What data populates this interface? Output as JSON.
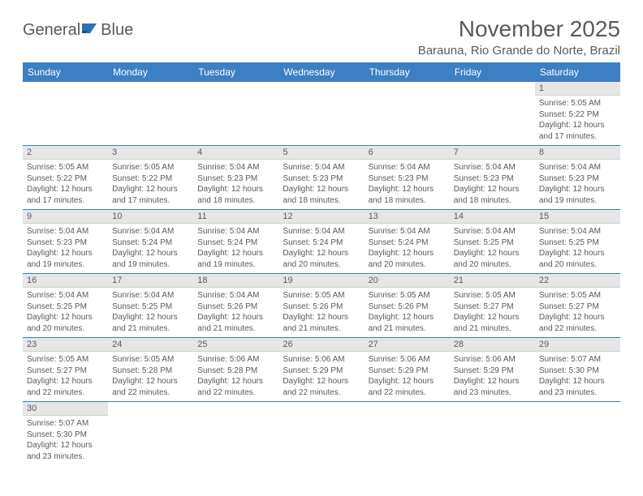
{
  "logo": {
    "textLeft": "General",
    "textRight": "Blue",
    "iconColor": "#2e6fb5",
    "textColor": "#5a5a5a"
  },
  "title": "November 2025",
  "location": "Barauna, Rio Grande do Norte, Brazil",
  "colors": {
    "headerBg": "#3b7fc4",
    "headerText": "#ffffff",
    "dayNumBg": "#e6e6e6",
    "borderColor": "#3b7fc4",
    "bodyText": "#5a5a5a"
  },
  "headers": [
    "Sunday",
    "Monday",
    "Tuesday",
    "Wednesday",
    "Thursday",
    "Friday",
    "Saturday"
  ],
  "weeks": [
    [
      null,
      null,
      null,
      null,
      null,
      null,
      {
        "n": "1",
        "sunrise": "5:05 AM",
        "sunset": "5:22 PM",
        "daylight": "12 hours and 17 minutes."
      }
    ],
    [
      {
        "n": "2",
        "sunrise": "5:05 AM",
        "sunset": "5:22 PM",
        "daylight": "12 hours and 17 minutes."
      },
      {
        "n": "3",
        "sunrise": "5:05 AM",
        "sunset": "5:22 PM",
        "daylight": "12 hours and 17 minutes."
      },
      {
        "n": "4",
        "sunrise": "5:04 AM",
        "sunset": "5:23 PM",
        "daylight": "12 hours and 18 minutes."
      },
      {
        "n": "5",
        "sunrise": "5:04 AM",
        "sunset": "5:23 PM",
        "daylight": "12 hours and 18 minutes."
      },
      {
        "n": "6",
        "sunrise": "5:04 AM",
        "sunset": "5:23 PM",
        "daylight": "12 hours and 18 minutes."
      },
      {
        "n": "7",
        "sunrise": "5:04 AM",
        "sunset": "5:23 PM",
        "daylight": "12 hours and 18 minutes."
      },
      {
        "n": "8",
        "sunrise": "5:04 AM",
        "sunset": "5:23 PM",
        "daylight": "12 hours and 19 minutes."
      }
    ],
    [
      {
        "n": "9",
        "sunrise": "5:04 AM",
        "sunset": "5:23 PM",
        "daylight": "12 hours and 19 minutes."
      },
      {
        "n": "10",
        "sunrise": "5:04 AM",
        "sunset": "5:24 PM",
        "daylight": "12 hours and 19 minutes."
      },
      {
        "n": "11",
        "sunrise": "5:04 AM",
        "sunset": "5:24 PM",
        "daylight": "12 hours and 19 minutes."
      },
      {
        "n": "12",
        "sunrise": "5:04 AM",
        "sunset": "5:24 PM",
        "daylight": "12 hours and 20 minutes."
      },
      {
        "n": "13",
        "sunrise": "5:04 AM",
        "sunset": "5:24 PM",
        "daylight": "12 hours and 20 minutes."
      },
      {
        "n": "14",
        "sunrise": "5:04 AM",
        "sunset": "5:25 PM",
        "daylight": "12 hours and 20 minutes."
      },
      {
        "n": "15",
        "sunrise": "5:04 AM",
        "sunset": "5:25 PM",
        "daylight": "12 hours and 20 minutes."
      }
    ],
    [
      {
        "n": "16",
        "sunrise": "5:04 AM",
        "sunset": "5:25 PM",
        "daylight": "12 hours and 20 minutes."
      },
      {
        "n": "17",
        "sunrise": "5:04 AM",
        "sunset": "5:25 PM",
        "daylight": "12 hours and 21 minutes."
      },
      {
        "n": "18",
        "sunrise": "5:04 AM",
        "sunset": "5:26 PM",
        "daylight": "12 hours and 21 minutes."
      },
      {
        "n": "19",
        "sunrise": "5:05 AM",
        "sunset": "5:26 PM",
        "daylight": "12 hours and 21 minutes."
      },
      {
        "n": "20",
        "sunrise": "5:05 AM",
        "sunset": "5:26 PM",
        "daylight": "12 hours and 21 minutes."
      },
      {
        "n": "21",
        "sunrise": "5:05 AM",
        "sunset": "5:27 PM",
        "daylight": "12 hours and 21 minutes."
      },
      {
        "n": "22",
        "sunrise": "5:05 AM",
        "sunset": "5:27 PM",
        "daylight": "12 hours and 22 minutes."
      }
    ],
    [
      {
        "n": "23",
        "sunrise": "5:05 AM",
        "sunset": "5:27 PM",
        "daylight": "12 hours and 22 minutes."
      },
      {
        "n": "24",
        "sunrise": "5:05 AM",
        "sunset": "5:28 PM",
        "daylight": "12 hours and 22 minutes."
      },
      {
        "n": "25",
        "sunrise": "5:06 AM",
        "sunset": "5:28 PM",
        "daylight": "12 hours and 22 minutes."
      },
      {
        "n": "26",
        "sunrise": "5:06 AM",
        "sunset": "5:29 PM",
        "daylight": "12 hours and 22 minutes."
      },
      {
        "n": "27",
        "sunrise": "5:06 AM",
        "sunset": "5:29 PM",
        "daylight": "12 hours and 22 minutes."
      },
      {
        "n": "28",
        "sunrise": "5:06 AM",
        "sunset": "5:29 PM",
        "daylight": "12 hours and 23 minutes."
      },
      {
        "n": "29",
        "sunrise": "5:07 AM",
        "sunset": "5:30 PM",
        "daylight": "12 hours and 23 minutes."
      }
    ],
    [
      {
        "n": "30",
        "sunrise": "5:07 AM",
        "sunset": "5:30 PM",
        "daylight": "12 hours and 23 minutes."
      },
      null,
      null,
      null,
      null,
      null,
      null
    ]
  ],
  "labels": {
    "sunrise": "Sunrise:",
    "sunset": "Sunset:",
    "daylight": "Daylight:"
  }
}
